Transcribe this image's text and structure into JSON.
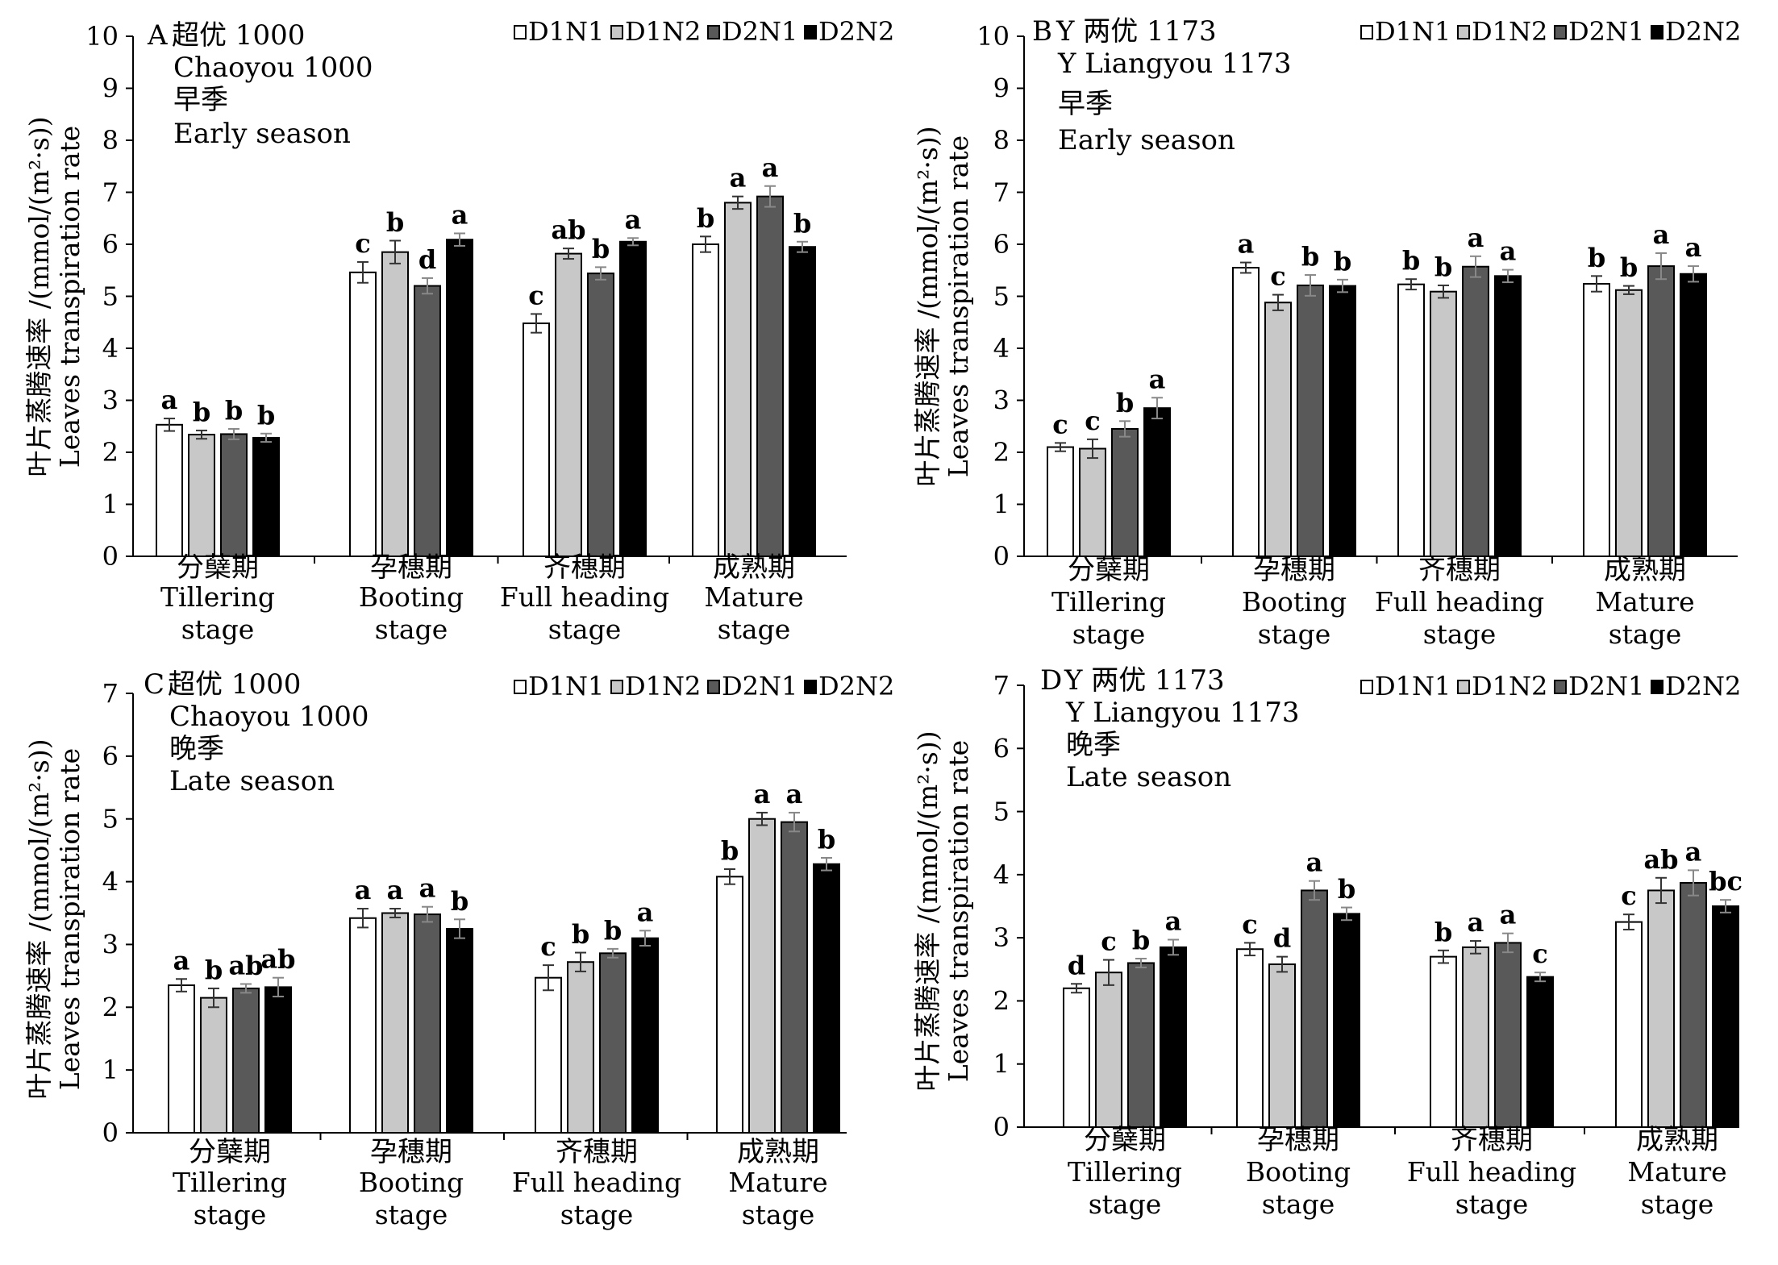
{
  "legend_labels": [
    "D1N1",
    "D1N2",
    "D2N1",
    "D2N2"
  ],
  "series_colors": [
    "#ffffff",
    "#c8c8c8",
    "#595959",
    "#000000"
  ],
  "y_axis_label": {
    "zh": "叶片蒸腾速率 /(mmol/(m²·s))",
    "en": "Leaves transpiration rate"
  },
  "stage_labels": [
    {
      "zh": "分蘖期",
      "en1": "Tillering",
      "en2": "stage"
    },
    {
      "zh": "孕穗期",
      "en1": "Booting",
      "en2": "stage"
    },
    {
      "zh": "齐穗期",
      "en1": "Full heading",
      "en2": "stage"
    },
    {
      "zh": "成熟期",
      "en1": "Mature",
      "en2": "stage"
    }
  ],
  "chart_data": [
    {
      "type": "bar",
      "panel": "A",
      "title_lines": [
        "超优 1000",
        "Chaoyou 1000",
        "早季",
        "Early season"
      ],
      "ylim": [
        0,
        10
      ],
      "yticks": [
        0,
        1,
        2,
        3,
        4,
        5,
        6,
        7,
        8,
        9,
        10
      ],
      "ytick_labels": [
        "0",
        "1",
        "2",
        "3",
        "4",
        "5",
        "6",
        "7",
        "8",
        "9",
        "10"
      ],
      "categories": [
        "分蘖期 Tillering stage",
        "孕穗期 Booting stage",
        "齐穗期 Full heading stage",
        "成熟期 Mature stage"
      ],
      "series": [
        {
          "name": "D1N1",
          "values": [
            2.53,
            5.46,
            4.48,
            6.0
          ],
          "errors": [
            0.12,
            0.2,
            0.18,
            0.15
          ],
          "labels": [
            "a",
            "c",
            "c",
            "b"
          ]
        },
        {
          "name": "D1N2",
          "values": [
            2.34,
            5.85,
            5.82,
            6.8
          ],
          "errors": [
            0.08,
            0.22,
            0.1,
            0.12
          ],
          "labels": [
            "b",
            "b",
            "ab",
            "a"
          ]
        },
        {
          "name": "D2N1",
          "values": [
            2.35,
            5.2,
            5.44,
            6.92
          ],
          "errors": [
            0.1,
            0.15,
            0.12,
            0.2
          ],
          "labels": [
            "b",
            "d",
            "b",
            "a"
          ]
        },
        {
          "name": "D2N2",
          "values": [
            2.28,
            6.09,
            6.05,
            5.95
          ],
          "errors": [
            0.08,
            0.12,
            0.07,
            0.1
          ],
          "labels": [
            "b",
            "a",
            "a",
            "b"
          ]
        }
      ]
    },
    {
      "type": "bar",
      "panel": "B",
      "title_lines": [
        "Y 两优 1173",
        "Y Liangyou 1173",
        "早季",
        "Early season"
      ],
      "ylim": [
        0,
        10
      ],
      "yticks": [
        0,
        1,
        2,
        3,
        4,
        5,
        6,
        7,
        8,
        9,
        10
      ],
      "ytick_labels": [
        "0",
        "1",
        "2",
        "3",
        "4",
        "5",
        "6",
        "7",
        "8",
        "9",
        "10"
      ],
      "categories": [
        "分蘖期 Tillering stage",
        "孕穗期 Booting stage",
        "齐穗期 Full heading stage",
        "成熟期 Mature stage"
      ],
      "series": [
        {
          "name": "D1N1",
          "values": [
            2.1,
            5.55,
            5.23,
            5.24
          ],
          "errors": [
            0.08,
            0.1,
            0.1,
            0.15
          ],
          "labels": [
            "c",
            "a",
            "b",
            "b"
          ]
        },
        {
          "name": "D1N2",
          "values": [
            2.07,
            4.88,
            5.09,
            5.12
          ],
          "errors": [
            0.18,
            0.15,
            0.12,
            0.08
          ],
          "labels": [
            "c",
            "c",
            "b",
            "b"
          ]
        },
        {
          "name": "D2N1",
          "values": [
            2.45,
            5.21,
            5.57,
            5.58
          ],
          "errors": [
            0.15,
            0.2,
            0.2,
            0.25
          ],
          "labels": [
            "b",
            "b",
            "a",
            "a"
          ]
        },
        {
          "name": "D2N2",
          "values": [
            2.85,
            5.2,
            5.39,
            5.43
          ],
          "errors": [
            0.2,
            0.12,
            0.12,
            0.15
          ],
          "labels": [
            "a",
            "b",
            "a",
            "a"
          ]
        }
      ]
    },
    {
      "type": "bar",
      "panel": "C",
      "title_lines": [
        "超优 1000",
        "Chaoyou 1000",
        "晚季",
        "Late season"
      ],
      "ylim": [
        0,
        7
      ],
      "yticks": [
        0,
        1,
        2,
        3,
        4,
        5,
        6,
        7
      ],
      "ytick_labels": [
        "0",
        "1",
        "2",
        "3",
        "4",
        "5",
        "6",
        "7"
      ],
      "categories": [
        "分蘖期 Tillering stage",
        "孕穗期 Booting stage",
        "齐穗期 Full heading stage",
        "成熟期 Mature stage"
      ],
      "series": [
        {
          "name": "D1N1",
          "values": [
            2.35,
            3.42,
            2.47,
            4.08
          ],
          "errors": [
            0.1,
            0.15,
            0.2,
            0.12
          ],
          "labels": [
            "a",
            "a",
            "c",
            "b"
          ]
        },
        {
          "name": "D1N2",
          "values": [
            2.15,
            3.5,
            2.72,
            5.0
          ],
          "errors": [
            0.15,
            0.07,
            0.15,
            0.1
          ],
          "labels": [
            "b",
            "a",
            "b",
            "a"
          ]
        },
        {
          "name": "D2N1",
          "values": [
            2.3,
            3.48,
            2.86,
            4.95
          ],
          "errors": [
            0.07,
            0.12,
            0.07,
            0.15
          ],
          "labels": [
            "ab",
            "a",
            "b",
            "a"
          ]
        },
        {
          "name": "D2N2",
          "values": [
            2.32,
            3.25,
            3.1,
            4.28
          ],
          "errors": [
            0.15,
            0.15,
            0.12,
            0.1
          ],
          "labels": [
            "ab",
            "b",
            "a",
            "b"
          ]
        }
      ]
    },
    {
      "type": "bar",
      "panel": "D",
      "title_lines": [
        "Y 两优 1173",
        "Y Liangyou 1173",
        "晚季",
        "Late season"
      ],
      "ylim": [
        0,
        7
      ],
      "yticks": [
        0,
        1,
        2,
        3,
        4,
        5,
        6,
        7
      ],
      "ytick_labels": [
        "0",
        "1",
        "2",
        "3",
        "4",
        "5",
        "6",
        "7"
      ],
      "categories": [
        "分蘖期 Tillering stage",
        "孕穗期 Booting stage",
        "齐穗期 Full heading stage",
        "成熟期 Mature stage"
      ],
      "series": [
        {
          "name": "D1N1",
          "values": [
            2.2,
            2.82,
            2.7,
            3.25
          ],
          "errors": [
            0.07,
            0.1,
            0.1,
            0.12
          ],
          "labels": [
            "d",
            "c",
            "b",
            "c"
          ]
        },
        {
          "name": "D1N2",
          "values": [
            2.45,
            2.58,
            2.85,
            3.75
          ],
          "errors": [
            0.2,
            0.12,
            0.1,
            0.2
          ],
          "labels": [
            "c",
            "d",
            "a",
            "ab"
          ]
        },
        {
          "name": "D2N1",
          "values": [
            2.6,
            3.75,
            2.92,
            3.87
          ],
          "errors": [
            0.07,
            0.15,
            0.15,
            0.2
          ],
          "labels": [
            "b",
            "a",
            "a",
            "a"
          ]
        },
        {
          "name": "D2N2",
          "values": [
            2.85,
            3.38,
            2.38,
            3.5
          ],
          "errors": [
            0.12,
            0.1,
            0.07,
            0.1
          ],
          "labels": [
            "a",
            "b",
            "c",
            "bc"
          ]
        }
      ]
    }
  ]
}
